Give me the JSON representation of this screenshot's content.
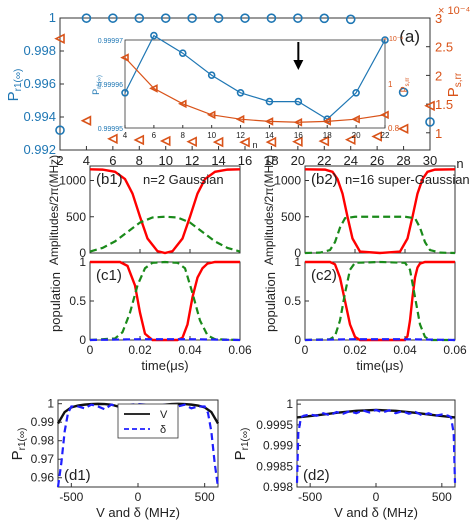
{
  "colors": {
    "blue": "#1f77b4",
    "orange": "#d95319",
    "red": "#ff0000",
    "green": "#1a8a1a",
    "darkblue": "#1f1fff",
    "black": "#111111"
  },
  "chart_data": [
    {
      "id": "a",
      "type": "scatter",
      "panel_label": "(a)",
      "xlabel": "n",
      "ylabel_left": "P r1(∞)",
      "ylabel_right": "P s,rr",
      "xlim": [
        2,
        30
      ],
      "ylim_left": [
        0.992,
        1
      ],
      "ylim_right": [
        7e-05,
        0.0003
      ],
      "xticks": [
        "2",
        "4",
        "6",
        "8",
        "10",
        "12",
        "14",
        "16",
        "18",
        "20",
        "22",
        "24",
        "26",
        "28",
        "30"
      ],
      "yticks_left": [
        "0.992",
        "0.994",
        "0.996",
        "0.998",
        "1"
      ],
      "yticks_right": [
        "1",
        "1.5",
        "2",
        "2.5",
        "3"
      ],
      "right_multiplier": "× 10⁻⁴",
      "series": [
        {
          "axis": "left",
          "color": "#1f77b4",
          "marker": "circle",
          "x": [
            2,
            4,
            6,
            8,
            10,
            12,
            14,
            16,
            18,
            20,
            22,
            24,
            26,
            28,
            30
          ],
          "y": [
            0.9932,
            0.99999,
            0.99999,
            0.99999,
            0.99999,
            0.99999,
            0.99999,
            0.99999,
            0.99999,
            0.99999,
            0.99998,
            0.99992,
            0.9973,
            0.9955,
            0.9937
          ]
        },
        {
          "axis": "right",
          "color": "#d95319",
          "marker": "triangle-left",
          "x": [
            2,
            4,
            6,
            8,
            10,
            12,
            14,
            16,
            18,
            20,
            22,
            24,
            26,
            28,
            30
          ],
          "y": [
            0.000264,
            0.000121,
            8.95e-05,
            8.75e-05,
            8.57e-05,
            8.45e-05,
            8.38e-05,
            8.35e-05,
            8.38e-05,
            8.45e-05,
            8.55e-05,
            8.8e-05,
            9.35e-05,
            0.000107,
            0.000147
          ]
        }
      ],
      "inset": {
        "xlabel": "n",
        "ylabel_left": "P r1(∞)",
        "ylabel_right": "P s,rr",
        "xlim": [
          4,
          22
        ],
        "ylim_left": [
          0.99995,
          0.99997
        ],
        "ylim_right": [
          0.8,
          1.2
        ],
        "xticks": [
          "4",
          "6",
          "8",
          "10",
          "12",
          "14",
          "16",
          "18",
          "20",
          "22"
        ],
        "yticks_left": [
          "0.99995",
          "0.99996",
          "0.99997"
        ],
        "yticks_right": [
          "0.8",
          "1"
        ],
        "right_multiplier": "× 10⁻⁴",
        "series": [
          {
            "axis": "left",
            "color": "#1f77b4",
            "marker": "circle",
            "x": [
              4,
              6,
              8,
              10,
              12,
              14,
              16,
              18,
              20,
              22
            ],
            "y": [
              0.999958,
              0.999971,
              0.999967,
              0.999962,
              0.999958,
              0.999956,
              0.999956,
              0.999952,
              0.999958,
              0.99997
            ]
          },
          {
            "axis": "right",
            "color": "#d95319",
            "marker": "triangle-left",
            "x": [
              4,
              6,
              8,
              10,
              12,
              14,
              16,
              18,
              20,
              22
            ],
            "y": [
              1.12,
              0.98,
              0.91,
              0.86,
              0.84,
              0.83,
              0.826,
              0.83,
              0.84,
              0.86
            ]
          }
        ]
      }
    },
    {
      "id": "b1",
      "type": "line",
      "panel_label": "(b1)",
      "annotation": "n=2 Gaussian",
      "ylabel": "Amplitudes/2π(MHz)",
      "xlim": [
        0,
        0.06
      ],
      "ylim": [
        0,
        1200
      ],
      "yticks": [
        "0",
        "500",
        "1000"
      ],
      "series": [
        {
          "color": "#ff0000",
          "style": "solid",
          "x": [
            0,
            0.005,
            0.01,
            0.014,
            0.017,
            0.02,
            0.023,
            0.027,
            0.03,
            0.033,
            0.037,
            0.04,
            0.043,
            0.046,
            0.05,
            0.055,
            0.06
          ],
          "y": [
            1155,
            1150,
            1120,
            1020,
            820,
            500,
            200,
            25,
            0,
            25,
            200,
            500,
            820,
            1020,
            1120,
            1150,
            1155
          ]
        },
        {
          "color": "#1a8a1a",
          "style": "dashed",
          "x": [
            0,
            0.005,
            0.01,
            0.015,
            0.02,
            0.025,
            0.03,
            0.035,
            0.04,
            0.045,
            0.05,
            0.055,
            0.06
          ],
          "y": [
            20,
            70,
            160,
            290,
            420,
            490,
            500,
            490,
            420,
            290,
            160,
            70,
            20
          ]
        }
      ]
    },
    {
      "id": "b2",
      "type": "line",
      "panel_label": "(b2)",
      "annotation": "n=16 super-Gaussian",
      "ylabel": "Amplitudes/2π(MHz)",
      "xlim": [
        0,
        0.06
      ],
      "ylim": [
        0,
        1200
      ],
      "yticks": [
        "0",
        "500",
        "1000"
      ],
      "series": [
        {
          "color": "#ff0000",
          "style": "solid",
          "x": [
            0,
            0.008,
            0.011,
            0.013,
            0.015,
            0.017,
            0.019,
            0.022,
            0.03,
            0.038,
            0.041,
            0.043,
            0.045,
            0.047,
            0.049,
            0.052,
            0.06
          ],
          "y": [
            1155,
            1150,
            1120,
            1020,
            820,
            500,
            200,
            20,
            0,
            20,
            200,
            500,
            820,
            1020,
            1120,
            1150,
            1155
          ]
        },
        {
          "color": "#1a8a1a",
          "style": "dashed",
          "x": [
            0,
            0.006,
            0.01,
            0.012,
            0.014,
            0.016,
            0.02,
            0.03,
            0.04,
            0.044,
            0.046,
            0.048,
            0.05,
            0.054,
            0.06
          ],
          "y": [
            0,
            5,
            40,
            150,
            350,
            480,
            500,
            500,
            500,
            480,
            350,
            150,
            40,
            5,
            0
          ]
        }
      ]
    },
    {
      "id": "c1",
      "type": "line",
      "panel_label": "(c1)",
      "ylabel": "population",
      "xlabel": "time(μs)",
      "xlim": [
        0,
        0.06
      ],
      "ylim": [
        0,
        1
      ],
      "xticks": [
        "0",
        "0.02",
        "0.04",
        "0.06"
      ],
      "yticks": [
        "0",
        "0.5",
        "1"
      ],
      "series": [
        {
          "color": "#ff0000",
          "style": "solid",
          "x": [
            0,
            0.012,
            0.015,
            0.018,
            0.02,
            0.022,
            0.025,
            0.03,
            0.035,
            0.037,
            0.039,
            0.041,
            0.043,
            0.045,
            0.047,
            0.05,
            0.06
          ],
          "y": [
            1,
            1,
            0.95,
            0.7,
            0.35,
            0.08,
            0,
            0,
            0,
            0.03,
            0.2,
            0.55,
            0.8,
            0.92,
            0.98,
            1,
            1
          ]
        },
        {
          "color": "#1a8a1a",
          "style": "dashed",
          "x": [
            0,
            0.01,
            0.013,
            0.016,
            0.019,
            0.022,
            0.025,
            0.03,
            0.035,
            0.038,
            0.041,
            0.044,
            0.047,
            0.05,
            0.06
          ],
          "y": [
            0,
            0.02,
            0.1,
            0.35,
            0.7,
            0.92,
            0.99,
            1,
            0.99,
            0.92,
            0.6,
            0.25,
            0.06,
            0.01,
            0
          ]
        },
        {
          "color": "#1f1fff",
          "style": "dashed",
          "x": [
            0,
            0.02,
            0.04,
            0.06
          ],
          "y": [
            0,
            0.01,
            0.01,
            0
          ]
        }
      ]
    },
    {
      "id": "c2",
      "type": "line",
      "panel_label": "(c2)",
      "ylabel": "population",
      "xlabel": "time(μs)",
      "xlim": [
        0,
        0.06
      ],
      "ylim": [
        0,
        1
      ],
      "xticks": [
        "0",
        "0.02",
        "0.04",
        "0.06"
      ],
      "yticks": [
        "0",
        "0.5",
        "1"
      ],
      "series": [
        {
          "color": "#ff0000",
          "style": "solid",
          "x": [
            0,
            0.01,
            0.012,
            0.014,
            0.016,
            0.018,
            0.02,
            0.022,
            0.04,
            0.041,
            0.042,
            0.043,
            0.044,
            0.045,
            0.046,
            0.048,
            0.06
          ],
          "y": [
            1,
            1,
            0.97,
            0.8,
            0.5,
            0.2,
            0.04,
            0,
            0,
            0.05,
            0.25,
            0.55,
            0.8,
            0.93,
            0.98,
            1,
            1
          ]
        },
        {
          "color": "#1a8a1a",
          "style": "dashed",
          "x": [
            0,
            0.01,
            0.012,
            0.014,
            0.016,
            0.018,
            0.02,
            0.03,
            0.04,
            0.042,
            0.044,
            0.046,
            0.048,
            0.05,
            0.06
          ],
          "y": [
            0,
            0.01,
            0.05,
            0.25,
            0.6,
            0.9,
            0.99,
            1,
            0.99,
            0.9,
            0.55,
            0.2,
            0.04,
            0,
            0
          ]
        },
        {
          "color": "#1f1fff",
          "style": "dashed",
          "x": [
            0,
            0.02,
            0.04,
            0.06
          ],
          "y": [
            0,
            0.01,
            0.01,
            0
          ]
        }
      ]
    },
    {
      "id": "d1",
      "type": "line",
      "panel_label": "(d1)",
      "ylabel": "P r1(∞)",
      "xlabel": "V and δ (MHz)",
      "xlim": [
        -600,
        600
      ],
      "ylim": [
        0.955,
        1.002
      ],
      "xticks": [
        "-500",
        "0",
        "500"
      ],
      "yticks": [
        "0.96",
        "0.97",
        "0.98",
        "0.99",
        "1"
      ],
      "legend": [
        "V",
        "δ"
      ],
      "series": [
        {
          "name": "V",
          "color": "#111111",
          "style": "solid",
          "x": [
            -600,
            -550,
            -500,
            -450,
            -400,
            -350,
            -300,
            -250,
            -200,
            -150,
            -100,
            -50,
            0,
            50,
            100,
            150,
            200,
            250,
            300,
            350,
            400,
            450,
            500,
            550,
            600
          ],
          "y": [
            0.9893,
            0.9955,
            0.998,
            0.999,
            0.9995,
            0.9998,
            0.9999,
            0.9998,
            0.9995,
            0.9985,
            0.997,
            0.9945,
            0.993,
            0.9945,
            0.997,
            0.9985,
            0.9995,
            0.9998,
            0.9999,
            0.9998,
            0.9995,
            0.999,
            0.998,
            0.9955,
            0.9893
          ]
        },
        {
          "name": "δ",
          "color": "#1f1fff",
          "style": "dashed",
          "x": [
            -600,
            -575,
            -550,
            -525,
            -500,
            -450,
            -400,
            -350,
            -300,
            -250,
            -200,
            -150,
            -100,
            -50,
            0,
            50,
            100,
            150,
            200,
            250,
            300,
            350,
            400,
            450,
            500,
            525,
            550,
            575,
            600
          ],
          "y": [
            0.955,
            0.968,
            0.985,
            0.995,
            0.9985,
            0.9985,
            0.9975,
            0.9995,
            0.9985,
            0.997,
            0.9995,
            0.9985,
            0.9975,
            0.9995,
            0.9998,
            0.9995,
            0.9975,
            0.9985,
            0.9995,
            0.997,
            0.9985,
            0.9995,
            0.9975,
            0.9985,
            0.9985,
            0.995,
            0.985,
            0.968,
            0.955
          ]
        }
      ]
    },
    {
      "id": "d2",
      "type": "line",
      "panel_label": "(d2)",
      "ylabel": "P r1(∞)",
      "xlabel": "V and δ (MHz)",
      "xlim": [
        -600,
        600
      ],
      "ylim": [
        0.998,
        1.0001
      ],
      "xticks": [
        "-500",
        "0",
        "500"
      ],
      "yticks": [
        "0.998",
        "0.9985",
        "0.999",
        "0.9995",
        "1"
      ],
      "series": [
        {
          "name": "V",
          "color": "#111111",
          "style": "solid",
          "x": [
            -600,
            -450,
            -300,
            -150,
            0,
            150,
            300,
            450,
            600
          ],
          "y": [
            0.99968,
            0.99973,
            0.99979,
            0.99984,
            0.99986,
            0.99984,
            0.99979,
            0.99973,
            0.99968
          ]
        },
        {
          "name": "δ",
          "color": "#1f1fff",
          "style": "dashed",
          "x": [
            -600,
            -590,
            -570,
            -550,
            -500,
            -450,
            -400,
            -350,
            -300,
            -250,
            -200,
            -150,
            -100,
            -50,
            0,
            50,
            100,
            150,
            200,
            250,
            300,
            350,
            400,
            450,
            500,
            550,
            570,
            590,
            600
          ],
          "y": [
            0.9981,
            0.9993,
            0.99968,
            0.99972,
            0.99975,
            0.99972,
            0.99978,
            0.99973,
            0.99981,
            0.99977,
            0.99983,
            0.99978,
            0.99985,
            0.9998,
            0.99986,
            0.9998,
            0.99985,
            0.99978,
            0.99983,
            0.99977,
            0.99981,
            0.99973,
            0.99978,
            0.99972,
            0.99975,
            0.99972,
            0.99968,
            0.9993,
            0.9981
          ]
        }
      ]
    }
  ]
}
